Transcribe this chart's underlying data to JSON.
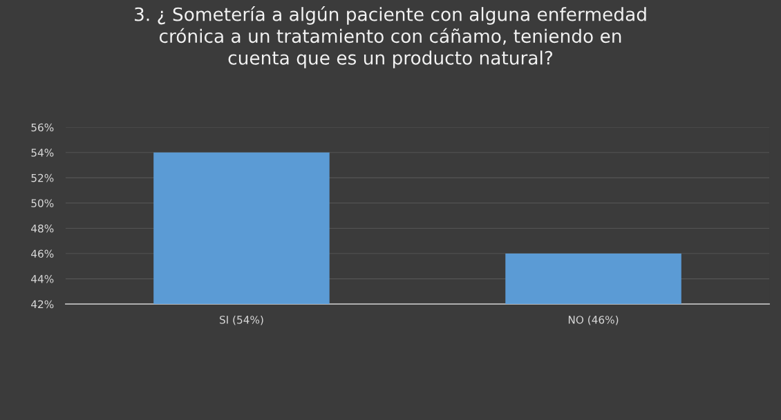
{
  "chart_data": {
    "type": "bar",
    "title": "3. ¿ Sometería a algún paciente con alguna enfermedad\ncrónica a un tratamiento con cáñamo, teniendo en\ncuenta que es un producto natural?",
    "categories": [
      "SI (54%)",
      "NO (46%)"
    ],
    "values": [
      54,
      46
    ],
    "color": "#5b9bd5",
    "ylim": [
      42,
      56
    ],
    "yticks": [
      {
        "value": 42,
        "label": "42%"
      },
      {
        "value": 44,
        "label": "44%"
      },
      {
        "value": 46,
        "label": "46%"
      },
      {
        "value": 48,
        "label": "48%"
      },
      {
        "value": 50,
        "label": "50%"
      },
      {
        "value": 52,
        "label": "52%"
      },
      {
        "value": 54,
        "label": "54%"
      },
      {
        "value": 56,
        "label": "56%"
      }
    ],
    "grid": "y"
  }
}
